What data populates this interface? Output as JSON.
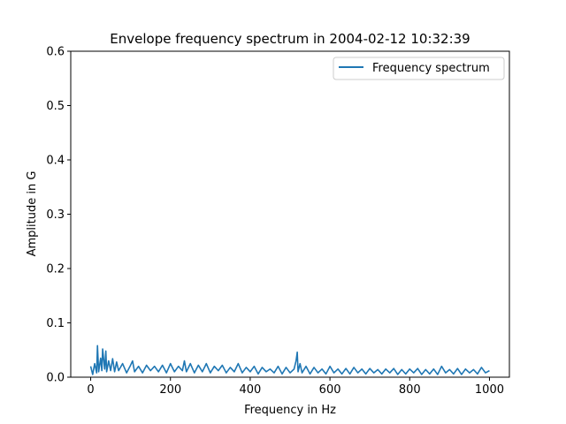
{
  "chart_data": {
    "type": "line",
    "title": "Envelope frequency spectrum in 2004-02-12 10:32:39",
    "xlabel": "Frequency in Hz",
    "ylabel": "Amplitude in G",
    "xlim": [
      -50,
      1050
    ],
    "ylim": [
      0,
      0.6
    ],
    "xticks": [
      0,
      200,
      400,
      600,
      800,
      1000
    ],
    "xtick_labels": [
      "0",
      "200",
      "400",
      "600",
      "800",
      "1000"
    ],
    "yticks": [
      0.0,
      0.1,
      0.2,
      0.3,
      0.4,
      0.5,
      0.6
    ],
    "ytick_labels": [
      "0.0",
      "0.1",
      "0.2",
      "0.3",
      "0.4",
      "0.5",
      "0.6"
    ],
    "grid": false,
    "legend_position": "top-right",
    "series": [
      {
        "name": "Frequency spectrum",
        "color": "#1f77b4",
        "x": [
          0,
          5,
          10,
          15,
          17,
          20,
          25,
          28,
          30,
          35,
          38,
          40,
          45,
          50,
          55,
          60,
          65,
          70,
          80,
          90,
          100,
          105,
          110,
          120,
          130,
          140,
          150,
          160,
          170,
          180,
          190,
          200,
          210,
          220,
          230,
          235,
          240,
          250,
          260,
          270,
          280,
          290,
          300,
          310,
          320,
          330,
          340,
          350,
          360,
          370,
          380,
          390,
          400,
          410,
          420,
          430,
          440,
          450,
          460,
          470,
          480,
          490,
          500,
          510,
          515,
          518,
          520,
          525,
          530,
          540,
          550,
          560,
          570,
          580,
          590,
          600,
          610,
          620,
          630,
          640,
          650,
          660,
          670,
          680,
          690,
          700,
          710,
          720,
          730,
          740,
          750,
          760,
          770,
          780,
          790,
          800,
          810,
          820,
          830,
          840,
          850,
          860,
          870,
          880,
          890,
          900,
          910,
          920,
          930,
          940,
          950,
          960,
          970,
          980,
          990,
          1000
        ],
        "y": [
          0.02,
          0.005,
          0.025,
          0.008,
          0.058,
          0.01,
          0.035,
          0.012,
          0.052,
          0.015,
          0.048,
          0.01,
          0.03,
          0.012,
          0.034,
          0.01,
          0.028,
          0.012,
          0.025,
          0.008,
          0.022,
          0.03,
          0.01,
          0.02,
          0.008,
          0.022,
          0.012,
          0.02,
          0.01,
          0.022,
          0.008,
          0.025,
          0.01,
          0.02,
          0.012,
          0.03,
          0.01,
          0.025,
          0.008,
          0.022,
          0.01,
          0.025,
          0.008,
          0.02,
          0.012,
          0.022,
          0.008,
          0.018,
          0.01,
          0.025,
          0.008,
          0.018,
          0.01,
          0.02,
          0.006,
          0.018,
          0.01,
          0.015,
          0.008,
          0.02,
          0.006,
          0.018,
          0.008,
          0.015,
          0.03,
          0.046,
          0.01,
          0.025,
          0.008,
          0.02,
          0.006,
          0.018,
          0.008,
          0.015,
          0.006,
          0.02,
          0.008,
          0.015,
          0.006,
          0.016,
          0.006,
          0.018,
          0.008,
          0.015,
          0.006,
          0.016,
          0.008,
          0.014,
          0.006,
          0.015,
          0.008,
          0.016,
          0.005,
          0.014,
          0.006,
          0.015,
          0.008,
          0.016,
          0.005,
          0.014,
          0.006,
          0.015,
          0.005,
          0.02,
          0.008,
          0.014,
          0.006,
          0.016,
          0.005,
          0.015,
          0.008,
          0.014,
          0.006,
          0.018,
          0.008,
          0.012
        ]
      }
    ]
  }
}
